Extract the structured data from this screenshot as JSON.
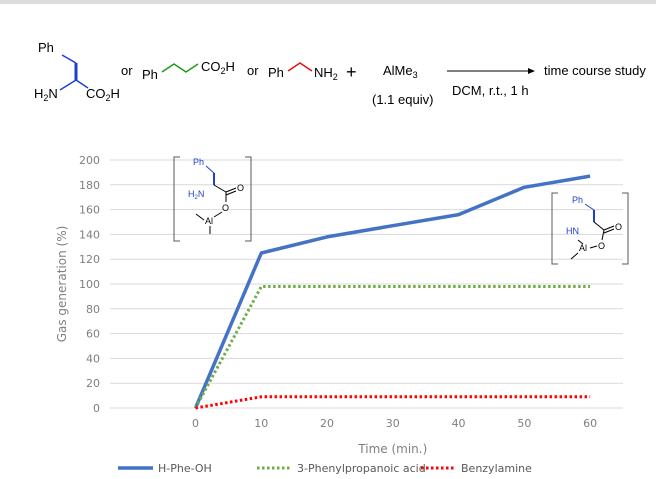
{
  "scheme": {
    "or_1": "or",
    "or_2": "or",
    "plus": "+",
    "reagent_a": "Ph",
    "reagent_a_amine": "H",
    "reagent_a_acid": "CO",
    "reagent_b_ph": "Ph",
    "reagent_b_acid": "CO",
    "reagent_c_ph": "Ph",
    "reagent_c_amine": "NH",
    "reagent_alme3": "AlMe",
    "equiv": "(1.1 equiv)",
    "conditions": "DCM, r.t., 1 h",
    "product": "time course study",
    "color_phe": "#1f3fcf",
    "color_acid": "#1a9a1a",
    "color_amine": "#e01010"
  },
  "insets": {
    "left": {
      "ph": "Ph",
      "amine": "H",
      "al": "Al",
      "o": "O"
    },
    "right": {
      "ph": "Ph",
      "hn": "HN",
      "al": "Al",
      "o": "O"
    }
  },
  "chart_data": {
    "type": "line",
    "x": [
      0,
      10,
      20,
      30,
      40,
      50,
      60
    ],
    "x_ticks": [
      "0",
      "10",
      "20",
      "30",
      "40",
      "50",
      "60"
    ],
    "y_ticks": [
      "0",
      "20",
      "40",
      "60",
      "80",
      "100",
      "120",
      "140",
      "160",
      "180",
      "200"
    ],
    "xlabel": "Time (min.)",
    "ylabel": "Gas generation (%)",
    "xlim": [
      -13,
      65
    ],
    "ylim": [
      0,
      200
    ],
    "grid": "horizontal",
    "legend_position": "bottom",
    "series": [
      {
        "name": "H-Phe-OH",
        "values": [
          0,
          125,
          138,
          147,
          156,
          178,
          187
        ],
        "color": "#4472c4",
        "style": "solid"
      },
      {
        "name": "3-Phenylpropanoic acid",
        "values": [
          0,
          98,
          98,
          98,
          98,
          98,
          98
        ],
        "color": "#70ad47",
        "style": "dotted"
      },
      {
        "name": "Benzylamine",
        "values": [
          0,
          9,
          9,
          9,
          9,
          9,
          9
        ],
        "color": "#ff0000",
        "style": "dotted"
      }
    ]
  }
}
